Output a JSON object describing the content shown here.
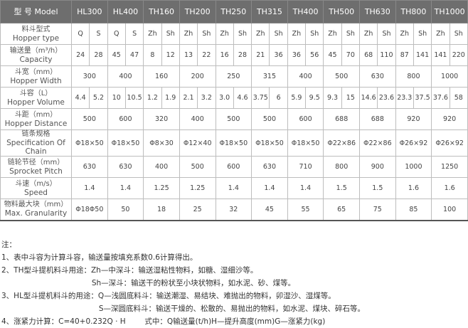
{
  "header": {
    "model_label": "型 号 Model",
    "models": [
      "HL300",
      "HL400",
      "TH160",
      "TH200",
      "TH250",
      "TH315",
      "TH400",
      "TH500",
      "TH630",
      "TH800",
      "TH1000"
    ]
  },
  "rows": [
    {
      "cn": "料斗型式",
      "en": "Hopper type",
      "split": true,
      "values": [
        "Q",
        "S",
        "Q",
        "S",
        "Zh",
        "Sh",
        "Zh",
        "Sh",
        "Zh",
        "Sh",
        "Zh",
        "Sh",
        "Zh",
        "Sh",
        "Zh",
        "Sh",
        "Zh",
        "Sh",
        "Zh",
        "Sh",
        "Zh",
        "Sh"
      ]
    },
    {
      "cn": "输送量（m³/h）",
      "en": "Capacity",
      "split": true,
      "values": [
        "24",
        "28",
        "45",
        "47",
        "8",
        "12",
        "13",
        "22",
        "16",
        "28",
        "21",
        "36",
        "36",
        "56",
        "45",
        "70",
        "68",
        "110",
        "87",
        "141",
        "141",
        "220"
      ]
    },
    {
      "cn": "斗宽（mm）",
      "en": "Hopper Width",
      "split": false,
      "values": [
        "300",
        "400",
        "160",
        "200",
        "250",
        "315",
        "400",
        "500",
        "630",
        "800",
        "1000"
      ]
    },
    {
      "cn": "斗容（L）",
      "en": "Hopper Volume",
      "split": true,
      "values": [
        "4.4",
        "5.2",
        "10",
        "10.5",
        "1.2",
        "1.9",
        "2.1",
        "3.2",
        "3.0",
        "4.6",
        "3.75",
        "6",
        "5.9",
        "9.5",
        "9.3",
        "15",
        "14.6",
        "23.6",
        "23.3",
        "37.5",
        "37.6",
        "58"
      ]
    },
    {
      "cn": "斗距（mm）",
      "en": "Hopper Distance",
      "split": false,
      "values": [
        "500",
        "600",
        "320",
        "400",
        "500",
        "500",
        "600",
        "688",
        "688",
        "920",
        "920"
      ]
    },
    {
      "cn": "链条规格",
      "en": "Specification Of Chain",
      "split": false,
      "values": [
        "Φ18×50",
        "Φ18×50",
        "Φ8×30",
        "Φ12×40",
        "Φ18×50",
        "Φ18×50",
        "Φ18×50",
        "Φ22×86",
        "Φ22×86",
        "Φ26×92",
        "Φ26×92"
      ]
    },
    {
      "cn": "链轮节径（mm）",
      "en": "Sprocket Pitch",
      "split": false,
      "values": [
        "630",
        "630",
        "400",
        "500",
        "600",
        "630",
        "710",
        "800",
        "900",
        "1000",
        "1250"
      ]
    },
    {
      "cn": "斗速（m/s）",
      "en": "Speed",
      "split": false,
      "values": [
        "1.4",
        "1.4",
        "1.25",
        "1.25",
        "1.4",
        "1.4",
        "1.4",
        "1.5",
        "1.5",
        "1.6",
        "1.6"
      ]
    },
    {
      "cn": "物料最大块（mm）",
      "en": "Max. Granularity",
      "split": false,
      "values": [
        "Φ18Φ50",
        "50",
        "18",
        "25",
        "32",
        "45",
        "55",
        "65",
        "75",
        "85",
        "100"
      ]
    }
  ],
  "notes": [
    "注：",
    "1、表中斗容为计算斗容，输送量按填充系数0.6计算得出。",
    "2、TH型斗提机料斗用途：Zh—中深斗：输送湿粘性物料，如糖、湿细沙等。",
    "                                      Sh—深斗：输送干的粉状至小块状物料，如水泥、砂、煤等。",
    "3、HL型斗提机料斗的用途：Q—浅圆底料斗：输送潮湿、易结块、难抛出的物料，卯湿沙、湿煤等。",
    "                                         S—深圆底料斗：输送干燥的、松散的、易抛出的物料，如水泥、煤块、碎石等。",
    "4、涨紧力计算：C=40+0.232Q · H        式中：Q输送量(t/h)H—提升高度(mm)G—涨紧力(kg)"
  ]
}
